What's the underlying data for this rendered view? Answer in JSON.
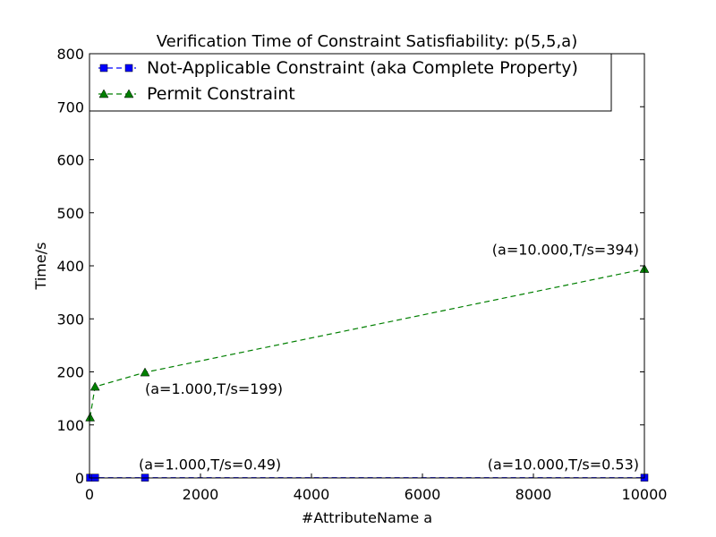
{
  "chart_data": {
    "type": "line",
    "title": "Verification Time of Constraint Satisfiability: p(5,5,a)",
    "xlabel": "#AttributeName  a",
    "ylabel": "Time/s",
    "xlim": [
      0,
      10000
    ],
    "ylim": [
      0,
      800
    ],
    "x_ticks": [
      0,
      2000,
      4000,
      6000,
      8000,
      10000
    ],
    "y_ticks": [
      0,
      100,
      200,
      300,
      400,
      500,
      600,
      700,
      800
    ],
    "grid": false,
    "legend_position": "upper-left",
    "series": [
      {
        "name": "Not-Applicable Constraint (aka Complete Property)",
        "color": "#0000ff",
        "marker": "square",
        "line_style": "dashed",
        "x": [
          10,
          100,
          1000,
          10000
        ],
        "y": [
          0.4,
          0.45,
          0.49,
          0.53
        ]
      },
      {
        "name": "Permit Constraint",
        "color": "#007f00",
        "marker": "triangle",
        "line_style": "dashed",
        "x": [
          10,
          100,
          1000,
          10000
        ],
        "y": [
          114,
          172,
          199,
          394
        ]
      }
    ],
    "annotations": [
      {
        "text": "(a=10.000,T/s=394)",
        "x": 10000,
        "y": 394
      },
      {
        "text": "(a=1.000,T/s=199)",
        "x": 1000,
        "y": 199
      },
      {
        "text": "(a=1.000,T/s=0.49)",
        "x": 1000,
        "y": 0.49
      },
      {
        "text": "(a=10.000,T/s=0.53)",
        "x": 10000,
        "y": 0.53
      }
    ]
  }
}
